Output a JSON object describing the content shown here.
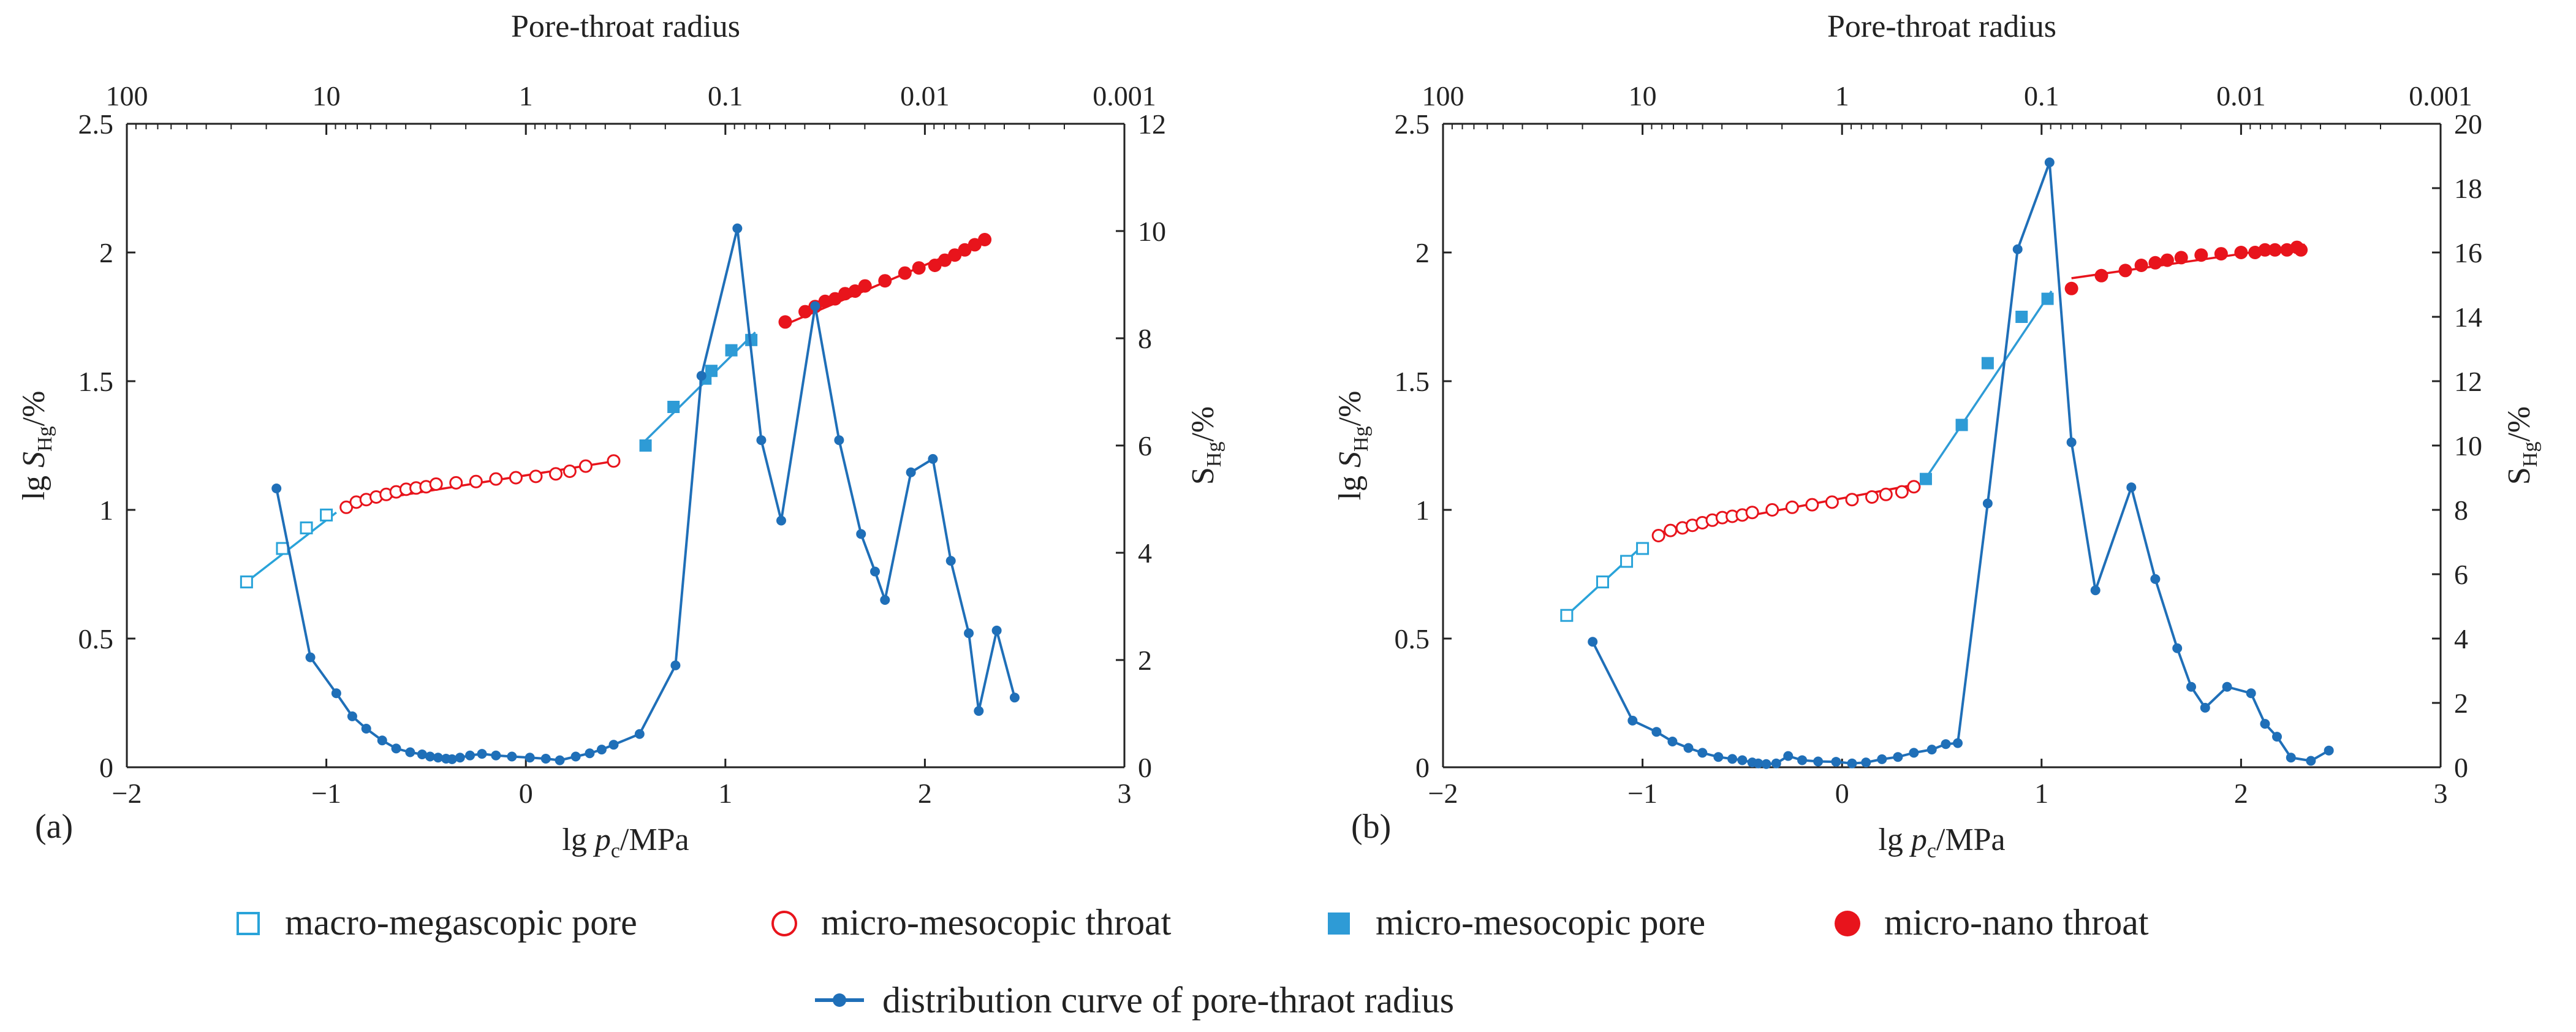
{
  "colors": {
    "axis": "#222222",
    "light_blue": "#29a3d9",
    "pore_blue": "#2e9bd6",
    "curve_blue": "#1f6fb8",
    "red": "#e8141c",
    "text": "#222222"
  },
  "legend": {
    "items": [
      {
        "label": "macro-megascopic pore",
        "marker": "open-square",
        "color": "#29a3d9"
      },
      {
        "label": "micro-mesocopic throat",
        "marker": "open-circle",
        "color": "#e8141c"
      },
      {
        "label": "micro-mesocopic pore",
        "marker": "filled-square",
        "color": "#2e9bd6"
      },
      {
        "label": "micro-nano throat",
        "marker": "filled-circle",
        "color": "#e8141c"
      },
      {
        "label": "distribution curve of pore-thraot radius",
        "marker": "line-dot",
        "color": "#1f6fb8"
      }
    ]
  },
  "chart_data": [
    {
      "panel_label": "(a)",
      "type": "scatter",
      "top_axis_label": "Pore-throat radius",
      "top_axis_scale": "log-reversed",
      "top_ticks": [
        "100",
        "10",
        "1",
        "0.1",
        "0.01",
        "0.001"
      ],
      "xlabel_parts": [
        "lg ",
        "p",
        "c",
        "/MPa"
      ],
      "ylabel_parts": [
        "lg ",
        "S",
        "Hg",
        "/%"
      ],
      "y2label_parts": [
        "S",
        "Hg",
        "/%"
      ],
      "xlim": [
        -2,
        3
      ],
      "ylim": [
        0,
        2.5
      ],
      "y2lim": [
        0,
        12
      ],
      "x_ticks": [
        "−2",
        "−1",
        "0",
        "1",
        "2",
        "3"
      ],
      "y_ticks": [
        "0",
        "0.5",
        "1",
        "1.5",
        "2",
        "2.5"
      ],
      "y2_ticks": [
        "0",
        "2",
        "4",
        "6",
        "8",
        "10",
        "12"
      ],
      "series": [
        {
          "name": "macro-megascopic pore",
          "axis": "left",
          "marker": "open-square",
          "fit": [
            [
              -1.4,
              0.72
            ],
            [
              -0.95,
              0.99
            ]
          ],
          "x": [
            -1.4,
            -1.22,
            -1.1,
            -1.0
          ],
          "y": [
            0.72,
            0.85,
            0.93,
            0.98
          ]
        },
        {
          "name": "micro-mesocopic throat",
          "axis": "left",
          "marker": "open-circle",
          "fit": [
            [
              -0.92,
              1.02
            ],
            [
              0.45,
              1.19
            ]
          ],
          "x": [
            -0.9,
            -0.85,
            -0.8,
            -0.75,
            -0.7,
            -0.65,
            -0.6,
            -0.55,
            -0.5,
            -0.45,
            -0.35,
            -0.25,
            -0.15,
            -0.05,
            0.05,
            0.15,
            0.22,
            0.3,
            0.44
          ],
          "y": [
            1.01,
            1.03,
            1.04,
            1.05,
            1.06,
            1.07,
            1.08,
            1.085,
            1.09,
            1.1,
            1.105,
            1.11,
            1.12,
            1.125,
            1.13,
            1.14,
            1.15,
            1.17,
            1.19
          ]
        },
        {
          "name": "micro-mesocopic pore",
          "axis": "left",
          "marker": "filled-square",
          "fit": [
            [
              0.6,
              1.27
            ],
            [
              1.15,
              1.69
            ]
          ],
          "x": [
            0.6,
            0.74,
            0.9,
            0.93,
            1.03,
            1.13
          ],
          "y": [
            1.25,
            1.4,
            1.51,
            1.54,
            1.62,
            1.66
          ]
        },
        {
          "name": "micro-nano throat",
          "axis": "left",
          "marker": "filled-circle",
          "fit": [
            [
              1.3,
              1.72
            ],
            [
              2.3,
              2.05
            ]
          ],
          "x": [
            1.3,
            1.4,
            1.45,
            1.5,
            1.55,
            1.6,
            1.65,
            1.7,
            1.8,
            1.9,
            1.97,
            2.05,
            2.1,
            2.15,
            2.2,
            2.25,
            2.3
          ],
          "y": [
            1.73,
            1.77,
            1.79,
            1.81,
            1.82,
            1.84,
            1.85,
            1.87,
            1.89,
            1.92,
            1.94,
            1.95,
            1.97,
            1.99,
            2.01,
            2.03,
            2.05
          ]
        },
        {
          "name": "distribution curve of pore-thraot radius",
          "axis": "right",
          "marker": "line-dot",
          "x": [
            -1.25,
            -1.08,
            -0.95,
            -0.87,
            -0.8,
            -0.72,
            -0.65,
            -0.58,
            -0.52,
            -0.48,
            -0.44,
            -0.4,
            -0.37,
            -0.33,
            -0.28,
            -0.22,
            -0.15,
            -0.07,
            0.02,
            0.1,
            0.17,
            0.25,
            0.32,
            0.38,
            0.44,
            0.57,
            0.75,
            0.88,
            1.06,
            1.18,
            1.28,
            1.45,
            1.57,
            1.68,
            1.75,
            1.8,
            1.93,
            2.04,
            2.13,
            2.22,
            2.27,
            2.36,
            2.45
          ],
          "y": [
            5.2,
            2.05,
            1.38,
            0.95,
            0.72,
            0.5,
            0.35,
            0.28,
            0.24,
            0.2,
            0.18,
            0.16,
            0.15,
            0.18,
            0.22,
            0.25,
            0.22,
            0.2,
            0.18,
            0.16,
            0.13,
            0.2,
            0.26,
            0.33,
            0.42,
            0.62,
            1.9,
            7.3,
            10.05,
            6.1,
            4.6,
            8.6,
            6.1,
            4.35,
            3.65,
            3.12,
            5.5,
            5.75,
            3.85,
            2.5,
            1.05,
            2.55,
            1.3
          ]
        }
      ]
    },
    {
      "panel_label": "(b)",
      "type": "scatter",
      "top_axis_label": "Pore-throat radius",
      "top_axis_scale": "log-reversed",
      "top_ticks": [
        "100",
        "10",
        "1",
        "0.1",
        "0.01",
        "0.001"
      ],
      "xlabel_parts": [
        "lg ",
        "p",
        "c",
        "/MPa"
      ],
      "ylabel_parts": [
        "lg ",
        "S",
        "Hg",
        "/%"
      ],
      "y2label_parts": [
        "S",
        "Hg",
        "/%"
      ],
      "xlim": [
        -2,
        3
      ],
      "ylim": [
        0,
        2.5
      ],
      "y2lim": [
        0,
        20
      ],
      "x_ticks": [
        "−2",
        "−1",
        "0",
        "1",
        "2",
        "3"
      ],
      "y_ticks": [
        "0",
        "0.5",
        "1",
        "1.5",
        "2",
        "2.5"
      ],
      "y2_ticks": [
        "0",
        "2",
        "4",
        "6",
        "8",
        "10",
        "12",
        "14",
        "16",
        "18",
        "20"
      ],
      "series": [
        {
          "name": "macro-megascopic pore",
          "axis": "left",
          "marker": "open-square",
          "fit": [
            [
              -1.38,
              0.59
            ],
            [
              -1.0,
              0.86
            ]
          ],
          "x": [
            -1.38,
            -1.2,
            -1.08,
            -1.0
          ],
          "y": [
            0.59,
            0.72,
            0.8,
            0.85
          ]
        },
        {
          "name": "micro-mesocopic throat",
          "axis": "left",
          "marker": "open-circle",
          "fit": [
            [
              -0.93,
              0.91
            ],
            [
              0.38,
              1.1
            ]
          ],
          "x": [
            -0.92,
            -0.86,
            -0.8,
            -0.75,
            -0.7,
            -0.65,
            -0.6,
            -0.55,
            -0.5,
            -0.45,
            -0.35,
            -0.25,
            -0.15,
            -0.05,
            0.05,
            0.15,
            0.22,
            0.3,
            0.36
          ],
          "y": [
            0.9,
            0.92,
            0.93,
            0.94,
            0.95,
            0.96,
            0.97,
            0.975,
            0.98,
            0.99,
            1.0,
            1.01,
            1.02,
            1.03,
            1.04,
            1.05,
            1.06,
            1.07,
            1.09
          ]
        },
        {
          "name": "micro-mesocopic pore",
          "axis": "left",
          "marker": "filled-square",
          "fit": [
            [
              0.4,
              1.1
            ],
            [
              1.05,
              1.85
            ]
          ],
          "x": [
            0.42,
            0.6,
            0.73,
            0.9,
            1.03
          ],
          "y": [
            1.12,
            1.33,
            1.57,
            1.75,
            1.82
          ]
        },
        {
          "name": "micro-nano throat",
          "axis": "left",
          "marker": "filled-circle",
          "fit": [
            [
              1.15,
              1.9
            ],
            [
              2.32,
              2.03
            ]
          ],
          "x": [
            1.15,
            1.3,
            1.42,
            1.5,
            1.57,
            1.63,
            1.7,
            1.8,
            1.9,
            2.0,
            2.07,
            2.12,
            2.17,
            2.23,
            2.28,
            2.3
          ],
          "y": [
            1.86,
            1.91,
            1.93,
            1.95,
            1.96,
            1.97,
            1.98,
            1.99,
            1.995,
            2.0,
            2.0,
            2.01,
            2.01,
            2.01,
            2.02,
            2.01
          ]
        },
        {
          "name": "distribution curve of pore-thraot radius",
          "axis": "right",
          "marker": "line-dot",
          "x": [
            -1.25,
            -1.05,
            -0.93,
            -0.85,
            -0.77,
            -0.7,
            -0.62,
            -0.55,
            -0.5,
            -0.45,
            -0.42,
            -0.38,
            -0.33,
            -0.27,
            -0.2,
            -0.12,
            -0.03,
            0.05,
            0.12,
            0.2,
            0.28,
            0.36,
            0.45,
            0.52,
            0.58,
            0.73,
            0.88,
            1.04,
            1.15,
            1.27,
            1.45,
            1.57,
            1.68,
            1.75,
            1.82,
            1.93,
            2.05,
            2.12,
            2.18,
            2.25,
            2.35,
            2.44
          ],
          "y": [
            3.9,
            1.45,
            1.1,
            0.8,
            0.6,
            0.45,
            0.32,
            0.26,
            0.22,
            0.15,
            0.12,
            0.1,
            0.12,
            0.35,
            0.22,
            0.18,
            0.17,
            0.12,
            0.15,
            0.25,
            0.32,
            0.45,
            0.55,
            0.72,
            0.75,
            8.2,
            16.1,
            18.8,
            10.1,
            5.5,
            8.7,
            5.85,
            3.7,
            2.5,
            1.85,
            2.5,
            2.3,
            1.35,
            0.95,
            0.3,
            0.2,
            0.52
          ]
        }
      ]
    }
  ]
}
